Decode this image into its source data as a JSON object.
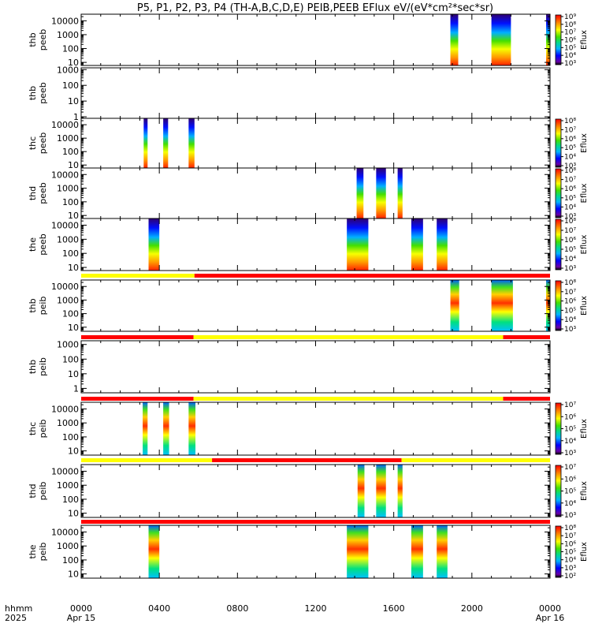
{
  "chart_data": {
    "type": "heatmap",
    "title": "P5, P1, P2, P3, P4 (TH-A,B,C,D,E) PEIB,PEEB EFlux eV/(eV*cm²*sec*sr)",
    "x_axis": {
      "row_label_1": "hhmm",
      "row_label_2": "2025",
      "range_hours": [
        0,
        24
      ],
      "ticks": [
        {
          "hour": 0,
          "label": "0000",
          "date": "Apr 15"
        },
        {
          "hour": 4,
          "label": "0400",
          "date": ""
        },
        {
          "hour": 8,
          "label": "0800",
          "date": ""
        },
        {
          "hour": 12,
          "label": "1200",
          "date": ""
        },
        {
          "hour": 16,
          "label": "1600",
          "date": ""
        },
        {
          "hour": 20,
          "label": "2000",
          "date": ""
        },
        {
          "hour": 24,
          "label": "0000",
          "date": "Apr 16"
        }
      ]
    },
    "colorbar_label": "Eflux",
    "colors": {
      "flag_good": "#ffff00",
      "flag_bad": "#ff0000"
    },
    "panels": [
      {
        "probe": "thb",
        "instrument": "peeb",
        "yscale": "log",
        "yrange": [
          6,
          30000
        ],
        "yticks": [
          {
            "v": 10,
            "t": "10"
          },
          {
            "v": 100,
            "t": "100"
          },
          {
            "v": 1000,
            "t": "1000"
          },
          {
            "v": 10000,
            "t": "10000"
          }
        ],
        "colorbar": [
          {
            "e": 3,
            "t": "10³"
          },
          {
            "e": 4,
            "t": "10⁴"
          },
          {
            "e": 5,
            "t": "10⁵"
          },
          {
            "e": 6,
            "t": "10⁶"
          },
          {
            "e": 7,
            "t": "10⁷"
          },
          {
            "e": 8,
            "t": "10⁸"
          },
          {
            "e": 9,
            "t": "10⁹"
          }
        ],
        "intervals": [
          [
            18.9,
            19.3
          ],
          [
            21.0,
            22.0
          ],
          [
            23.8,
            24.0
          ]
        ]
      },
      {
        "probe": "thb",
        "instrument": "peeb",
        "yscale": "log",
        "yrange": [
          0.8,
          1300
        ],
        "yticks": [
          {
            "v": 1,
            "t": "1"
          },
          {
            "v": 10,
            "t": "10"
          },
          {
            "v": 100,
            "t": "100"
          },
          {
            "v": 1000,
            "t": "1000"
          }
        ],
        "colorbar": [],
        "intervals": []
      },
      {
        "probe": "thc",
        "instrument": "peeb",
        "yscale": "log",
        "yrange": [
          6,
          30000
        ],
        "yticks": [
          {
            "v": 10,
            "t": "10"
          },
          {
            "v": 100,
            "t": "100"
          },
          {
            "v": 1000,
            "t": "1000"
          },
          {
            "v": 10000,
            "t": "10000"
          }
        ],
        "colorbar": [
          {
            "e": 3,
            "t": "10³"
          },
          {
            "e": 4,
            "t": "10⁴"
          },
          {
            "e": 5,
            "t": "10⁵"
          },
          {
            "e": 6,
            "t": "10⁶"
          },
          {
            "e": 7,
            "t": "10⁷"
          },
          {
            "e": 8,
            "t": "10⁸"
          }
        ],
        "intervals": [
          [
            3.2,
            3.4
          ],
          [
            4.2,
            4.45
          ],
          [
            5.5,
            5.8
          ]
        ]
      },
      {
        "probe": "thd",
        "instrument": "peeb",
        "yscale": "log",
        "yrange": [
          6,
          30000
        ],
        "yticks": [
          {
            "v": 10,
            "t": "10"
          },
          {
            "v": 100,
            "t": "100"
          },
          {
            "v": 1000,
            "t": "1000"
          },
          {
            "v": 10000,
            "t": "10000"
          }
        ],
        "colorbar": [
          {
            "e": 3,
            "t": "10³"
          },
          {
            "e": 4,
            "t": "10⁴"
          },
          {
            "e": 5,
            "t": "10⁵"
          },
          {
            "e": 6,
            "t": "10⁶"
          },
          {
            "e": 7,
            "t": "10⁷"
          },
          {
            "e": 8,
            "t": "10⁸"
          }
        ],
        "intervals": [
          [
            14.1,
            14.45
          ],
          [
            15.1,
            15.6
          ],
          [
            16.2,
            16.45
          ]
        ]
      },
      {
        "probe": "the",
        "instrument": "peeb",
        "yscale": "log",
        "yrange": [
          6,
          30000
        ],
        "yticks": [
          {
            "v": 10,
            "t": "10"
          },
          {
            "v": 100,
            "t": "100"
          },
          {
            "v": 1000,
            "t": "1000"
          },
          {
            "v": 10000,
            "t": "10000"
          }
        ],
        "colorbar": [
          {
            "e": 3,
            "t": "10³"
          },
          {
            "e": 4,
            "t": "10⁴"
          },
          {
            "e": 5,
            "t": "10⁵"
          },
          {
            "e": 6,
            "t": "10⁶"
          },
          {
            "e": 7,
            "t": "10⁷"
          },
          {
            "e": 8,
            "t": "10⁸"
          }
        ],
        "intervals": [
          [
            3.45,
            4.0
          ],
          [
            13.6,
            14.7
          ],
          [
            16.9,
            17.5
          ],
          [
            18.2,
            18.75
          ]
        ]
      },
      {
        "probe": "thb",
        "instrument": "peib",
        "yscale": "log",
        "yrange": [
          5,
          30000
        ],
        "yticks": [
          {
            "v": 10,
            "t": "10"
          },
          {
            "v": 100,
            "t": "100"
          },
          {
            "v": 1000,
            "t": "1000"
          },
          {
            "v": 10000,
            "t": "10000"
          }
        ],
        "colorbar": [
          {
            "e": 3,
            "t": "10³"
          },
          {
            "e": 4,
            "t": "10⁴"
          },
          {
            "e": 5,
            "t": "10⁵"
          },
          {
            "e": 6,
            "t": "10⁶"
          },
          {
            "e": 7,
            "t": "10⁷"
          },
          {
            "e": 8,
            "t": "10⁸"
          }
        ],
        "intervals": [
          [
            18.9,
            19.35
          ],
          [
            21.0,
            22.1
          ],
          [
            23.8,
            24.0
          ]
        ]
      },
      {
        "probe": "thb",
        "instrument": "peib",
        "yscale": "log",
        "yrange": [
          0.5,
          1800
        ],
        "yticks": [
          {
            "v": 1,
            "t": "1"
          },
          {
            "v": 10,
            "t": "10"
          },
          {
            "v": 100,
            "t": "100"
          },
          {
            "v": 1000,
            "t": "1000"
          }
        ],
        "colorbar": [],
        "intervals": []
      },
      {
        "probe": "thc",
        "instrument": "peib",
        "yscale": "log",
        "yrange": [
          5,
          30000
        ],
        "yticks": [
          {
            "v": 10,
            "t": "10"
          },
          {
            "v": 100,
            "t": "100"
          },
          {
            "v": 1000,
            "t": "1000"
          },
          {
            "v": 10000,
            "t": "10000"
          }
        ],
        "colorbar": [
          {
            "e": 3,
            "t": "10³"
          },
          {
            "e": 4,
            "t": "10⁴"
          },
          {
            "e": 5,
            "t": "10⁵"
          },
          {
            "e": 6,
            "t": "10⁶"
          },
          {
            "e": 7,
            "t": "10⁷"
          }
        ],
        "intervals": [
          [
            3.15,
            3.4
          ],
          [
            4.2,
            4.5
          ],
          [
            5.5,
            5.85
          ]
        ]
      },
      {
        "probe": "thd",
        "instrument": "peib",
        "yscale": "log",
        "yrange": [
          5,
          30000
        ],
        "yticks": [
          {
            "v": 10,
            "t": "10"
          },
          {
            "v": 100,
            "t": "100"
          },
          {
            "v": 1000,
            "t": "1000"
          },
          {
            "v": 10000,
            "t": "10000"
          }
        ],
        "colorbar": [
          {
            "e": 3,
            "t": "10³"
          },
          {
            "e": 4,
            "t": "10⁴"
          },
          {
            "e": 5,
            "t": "10⁵"
          },
          {
            "e": 6,
            "t": "10⁶"
          },
          {
            "e": 7,
            "t": "10⁷"
          }
        ],
        "intervals": [
          [
            14.15,
            14.5
          ],
          [
            15.1,
            15.6
          ],
          [
            16.2,
            16.45
          ]
        ]
      },
      {
        "probe": "the",
        "instrument": "peib",
        "yscale": "log",
        "yrange": [
          5,
          30000
        ],
        "yticks": [
          {
            "v": 10,
            "t": "10"
          },
          {
            "v": 100,
            "t": "100"
          },
          {
            "v": 1000,
            "t": "1000"
          },
          {
            "v": 10000,
            "t": "10000"
          }
        ],
        "colorbar": [
          {
            "e": 2,
            "t": "10²"
          },
          {
            "e": 3,
            "t": "10³"
          },
          {
            "e": 4,
            "t": "10⁴"
          },
          {
            "e": 5,
            "t": "10⁵"
          },
          {
            "e": 6,
            "t": "10⁶"
          },
          {
            "e": 7,
            "t": "10⁷"
          },
          {
            "e": 8,
            "t": "10⁸"
          }
        ],
        "intervals": [
          [
            3.45,
            4.0
          ],
          [
            13.6,
            14.7
          ],
          [
            16.9,
            17.5
          ],
          [
            18.2,
            18.75
          ]
        ]
      }
    ],
    "flag_bars": [
      {
        "segments": [
          {
            "from": 0,
            "to": 5.8,
            "state": "good"
          },
          {
            "from": 5.8,
            "to": 24,
            "state": "bad"
          }
        ]
      },
      {
        "segments": [
          {
            "from": 0,
            "to": 5.75,
            "state": "bad"
          },
          {
            "from": 5.75,
            "to": 21.6,
            "state": "good"
          },
          {
            "from": 21.6,
            "to": 24,
            "state": "bad"
          }
        ]
      },
      {
        "segments": [
          {
            "from": 0,
            "to": 5.75,
            "state": "bad"
          },
          {
            "from": 5.75,
            "to": 21.6,
            "state": "good"
          },
          {
            "from": 21.6,
            "to": 24,
            "state": "bad"
          }
        ]
      },
      {
        "segments": [
          {
            "from": 0,
            "to": 6.7,
            "state": "good"
          },
          {
            "from": 6.7,
            "to": 16.4,
            "state": "bad"
          },
          {
            "from": 16.4,
            "to": 24,
            "state": "good"
          }
        ]
      },
      {
        "segments": [
          {
            "from": 0,
            "to": 24,
            "state": "bad"
          }
        ]
      }
    ]
  }
}
